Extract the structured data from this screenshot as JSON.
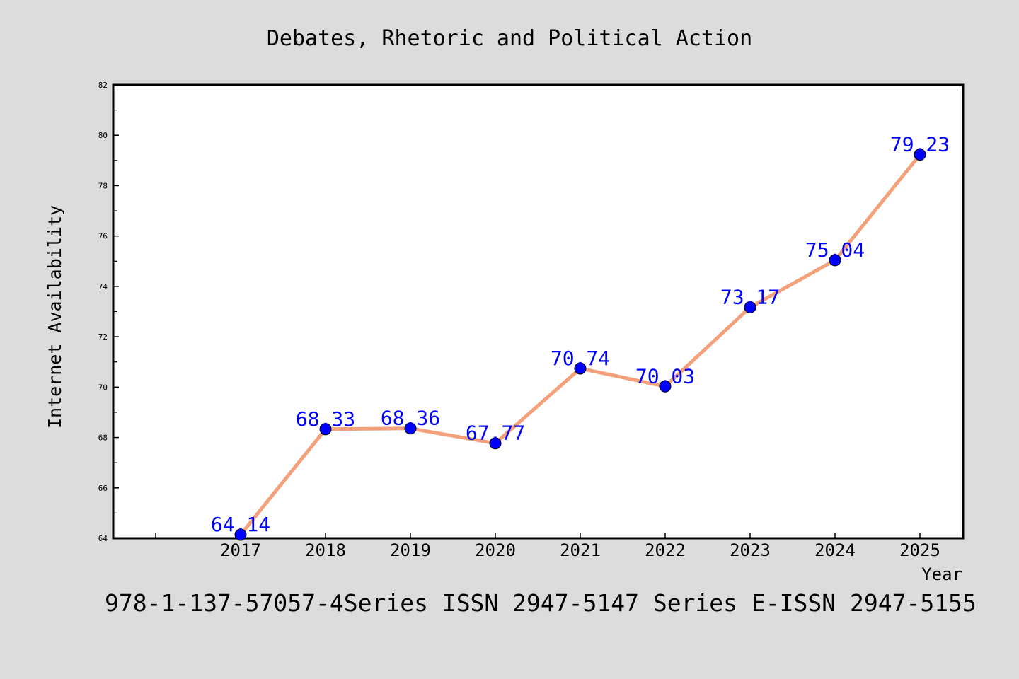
{
  "footer": {
    "text": "978-1-137-57057-4Series ISSN 2947-5147 Series E-ISSN 2947-5155"
  },
  "colors": {
    "background": "#dcdcdc",
    "plot_background": "#ffffff",
    "line": "#f4a07a",
    "marker": "#0000ff",
    "data_label": "#0000ff",
    "text": "#000000"
  },
  "chart_data": {
    "type": "line",
    "title": "Debates, Rhetoric and Political Action",
    "xlabel": "Year",
    "ylabel": "Internet Availability",
    "categories": [
      "2017",
      "2018",
      "2019",
      "2020",
      "2021",
      "2022",
      "2023",
      "2024",
      "2025"
    ],
    "series": [
      {
        "values": [
          64.14,
          68.33,
          68.36,
          67.77,
          70.74,
          70.03,
          73.17,
          75.04,
          79.23
        ],
        "labels": [
          "64.14",
          "68.33",
          "68.36",
          "67.77",
          "70.74",
          "70.03",
          "73.17",
          "75.04",
          "79.23"
        ]
      }
    ],
    "ylim": [
      64,
      82
    ],
    "yticks": [
      64,
      66,
      68,
      70,
      72,
      74,
      76,
      78,
      80,
      82
    ],
    "ytick_labels": [
      "64",
      "66",
      "68",
      "70",
      "72",
      "74",
      "76",
      "78",
      "80",
      "82"
    ],
    "grid": false,
    "legend": "none",
    "markers": true
  }
}
